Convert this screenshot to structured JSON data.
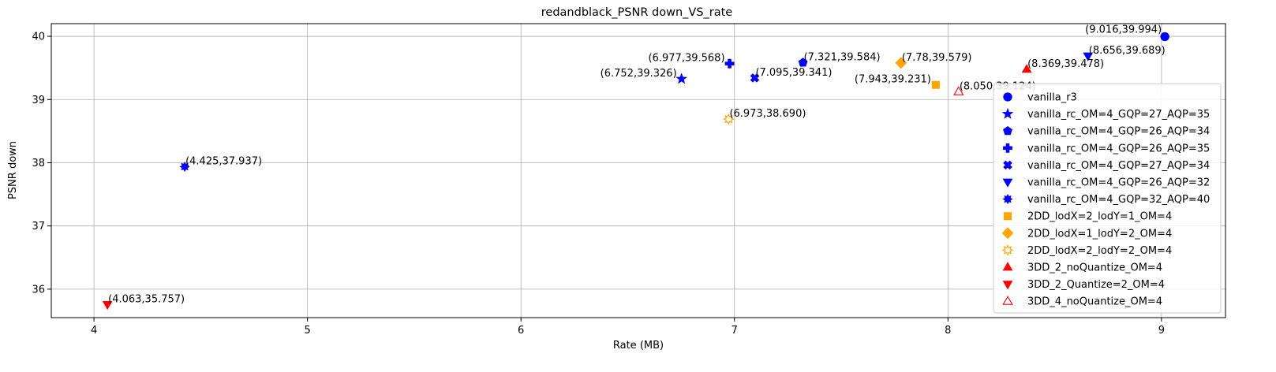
{
  "chart_data": {
    "type": "scatter",
    "title": "redandblack_PSNR down_VS_rate",
    "xlabel": "Rate (MB)",
    "ylabel": "PSNR down",
    "xlim": [
      3.8,
      9.3
    ],
    "ylim": [
      35.55,
      40.2
    ],
    "xticks": [
      4,
      5,
      6,
      7,
      8,
      9
    ],
    "yticks": [
      36,
      37,
      38,
      39,
      40
    ],
    "grid": true,
    "legend_position": "lower-right",
    "series": [
      {
        "name": "vanilla_r3",
        "color": "#0000ff",
        "marker": "circle",
        "filled": true,
        "points": [
          {
            "x": 9.016,
            "y": 39.994,
            "label": "(9.016,39.994)",
            "label_pos": "above-left"
          }
        ]
      },
      {
        "name": "vanilla_rc_OM=4_GQP=27_AQP=35",
        "color": "#0000ff",
        "marker": "star",
        "filled": true,
        "points": [
          {
            "x": 6.752,
            "y": 39.326,
            "label": "(6.752,39.326)",
            "label_pos": "left"
          }
        ]
      },
      {
        "name": "vanilla_rc_OM=4_GQP=26_AQP=34",
        "color": "#0000ff",
        "marker": "pentagon",
        "filled": true,
        "points": [
          {
            "x": 7.321,
            "y": 39.584,
            "label": "(7.321,39.584)",
            "label_pos": "right"
          }
        ]
      },
      {
        "name": "vanilla_rc_OM=4_GQP=26_AQP=35",
        "color": "#0000ff",
        "marker": "plus",
        "filled": true,
        "points": [
          {
            "x": 6.977,
            "y": 39.568,
            "label": "(6.977,39.568)",
            "label_pos": "left"
          }
        ]
      },
      {
        "name": "vanilla_rc_OM=4_GQP=27_AQP=34",
        "color": "#0000ff",
        "marker": "x",
        "filled": true,
        "points": [
          {
            "x": 7.095,
            "y": 39.341,
            "label": "(7.095,39.341)",
            "label_pos": "right"
          }
        ]
      },
      {
        "name": "vanilla_rc_OM=4_GQP=26_AQP=32",
        "color": "#0000ff",
        "marker": "triangle-down",
        "filled": true,
        "points": [
          {
            "x": 8.656,
            "y": 39.689,
            "label": "(8.656,39.689)",
            "label_pos": "right"
          }
        ]
      },
      {
        "name": "vanilla_rc_OM=4_GQP=32_AQP=40",
        "color": "#0000ff",
        "marker": "octagram",
        "filled": true,
        "points": [
          {
            "x": 4.425,
            "y": 37.937,
            "label": "(4.425,37.937)",
            "label_pos": "right"
          }
        ]
      },
      {
        "name": "2DD_lodX=2_lodY=1_OM=4",
        "color": "#ffa500",
        "marker": "square",
        "filled": true,
        "points": [
          {
            "x": 7.943,
            "y": 39.231,
            "label": "(7.943,39.231)",
            "label_pos": "left"
          }
        ]
      },
      {
        "name": "2DD_lodX=1_lodY=2_OM=4",
        "color": "#ffa500",
        "marker": "diamond",
        "filled": true,
        "points": [
          {
            "x": 7.78,
            "y": 39.579,
            "label": "(7.78,39.579)",
            "label_pos": "right"
          }
        ]
      },
      {
        "name": "2DD_lodX=2_lodY=2_OM=4",
        "color": "#ffa500",
        "marker": "sun",
        "filled": false,
        "points": [
          {
            "x": 6.973,
            "y": 38.69,
            "label": "(6.973,38.690)",
            "label_pos": "right"
          }
        ]
      },
      {
        "name": "3DD_2_noQuantize_OM=4",
        "color": "#ff0000",
        "marker": "triangle-up",
        "filled": true,
        "points": [
          {
            "x": 8.369,
            "y": 39.478,
            "label": "(8.369,39.478)",
            "label_pos": "right"
          }
        ]
      },
      {
        "name": "3DD_2_Quantize=2_OM=4",
        "color": "#ff0000",
        "marker": "triangle-down",
        "filled": true,
        "points": [
          {
            "x": 4.063,
            "y": 35.757,
            "label": "(4.063,35.757)",
            "label_pos": "right"
          }
        ]
      },
      {
        "name": "3DD_4_noQuantize_OM=4",
        "color": "#ff0000",
        "marker": "triangle-up",
        "filled": false,
        "points": [
          {
            "x": 8.05,
            "y": 39.124,
            "label": "(8.050,39.124)",
            "label_pos": "right"
          }
        ]
      }
    ]
  }
}
